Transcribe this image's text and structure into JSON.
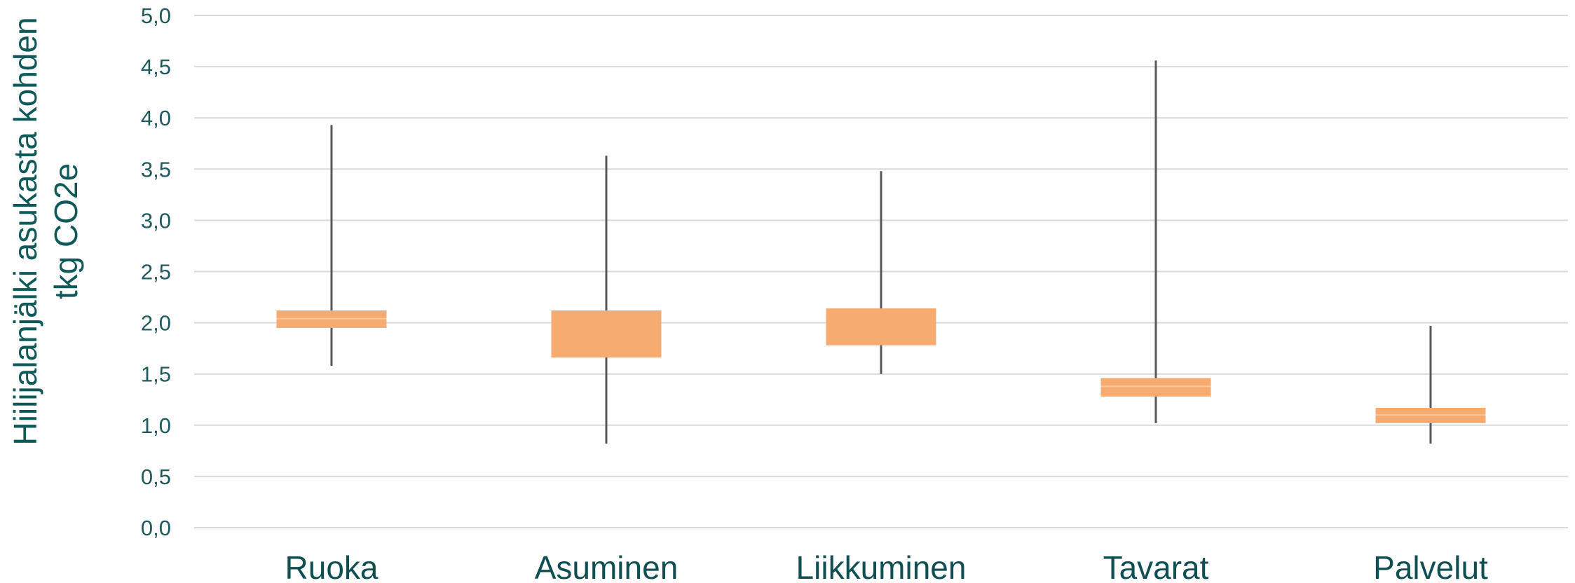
{
  "chart_data": {
    "type": "box",
    "ylabel_lines": [
      "Hiilijalanjälki asukasta kohden",
      "tkg CO2e"
    ],
    "ylim": [
      0,
      5
    ],
    "y_ticks": [
      "0,0",
      "0,5",
      "1,0",
      "1,5",
      "2,0",
      "2,5",
      "3,0",
      "3,5",
      "4,0",
      "4,5",
      "5,0"
    ],
    "y_tick_values": [
      0,
      0.5,
      1,
      1.5,
      2,
      2.5,
      3,
      3.5,
      4,
      4.5,
      5
    ],
    "grid": true,
    "colors": {
      "box": "#f6ab70",
      "whisker": "#595959",
      "grid": "#d9d9d9",
      "text": "#1f5a5c"
    },
    "categories": [
      "Ruoka",
      "Asuminen",
      "Liikkuminen",
      "Tavarat",
      "Palvelut"
    ],
    "boxes": [
      {
        "min": 1.58,
        "q1": 1.95,
        "median": 2.04,
        "q3": 2.12,
        "max": 3.93
      },
      {
        "min": 0.82,
        "q1": 1.66,
        "median": 2.12,
        "q3": 2.12,
        "max": 3.63
      },
      {
        "min": 1.5,
        "q1": 1.78,
        "median": 2.14,
        "q3": 2.14,
        "max": 3.48
      },
      {
        "min": 1.02,
        "q1": 1.28,
        "median": 1.38,
        "q3": 1.46,
        "max": 4.56
      },
      {
        "min": 0.82,
        "q1": 1.02,
        "median": 1.1,
        "q3": 1.17,
        "max": 1.97
      }
    ]
  }
}
